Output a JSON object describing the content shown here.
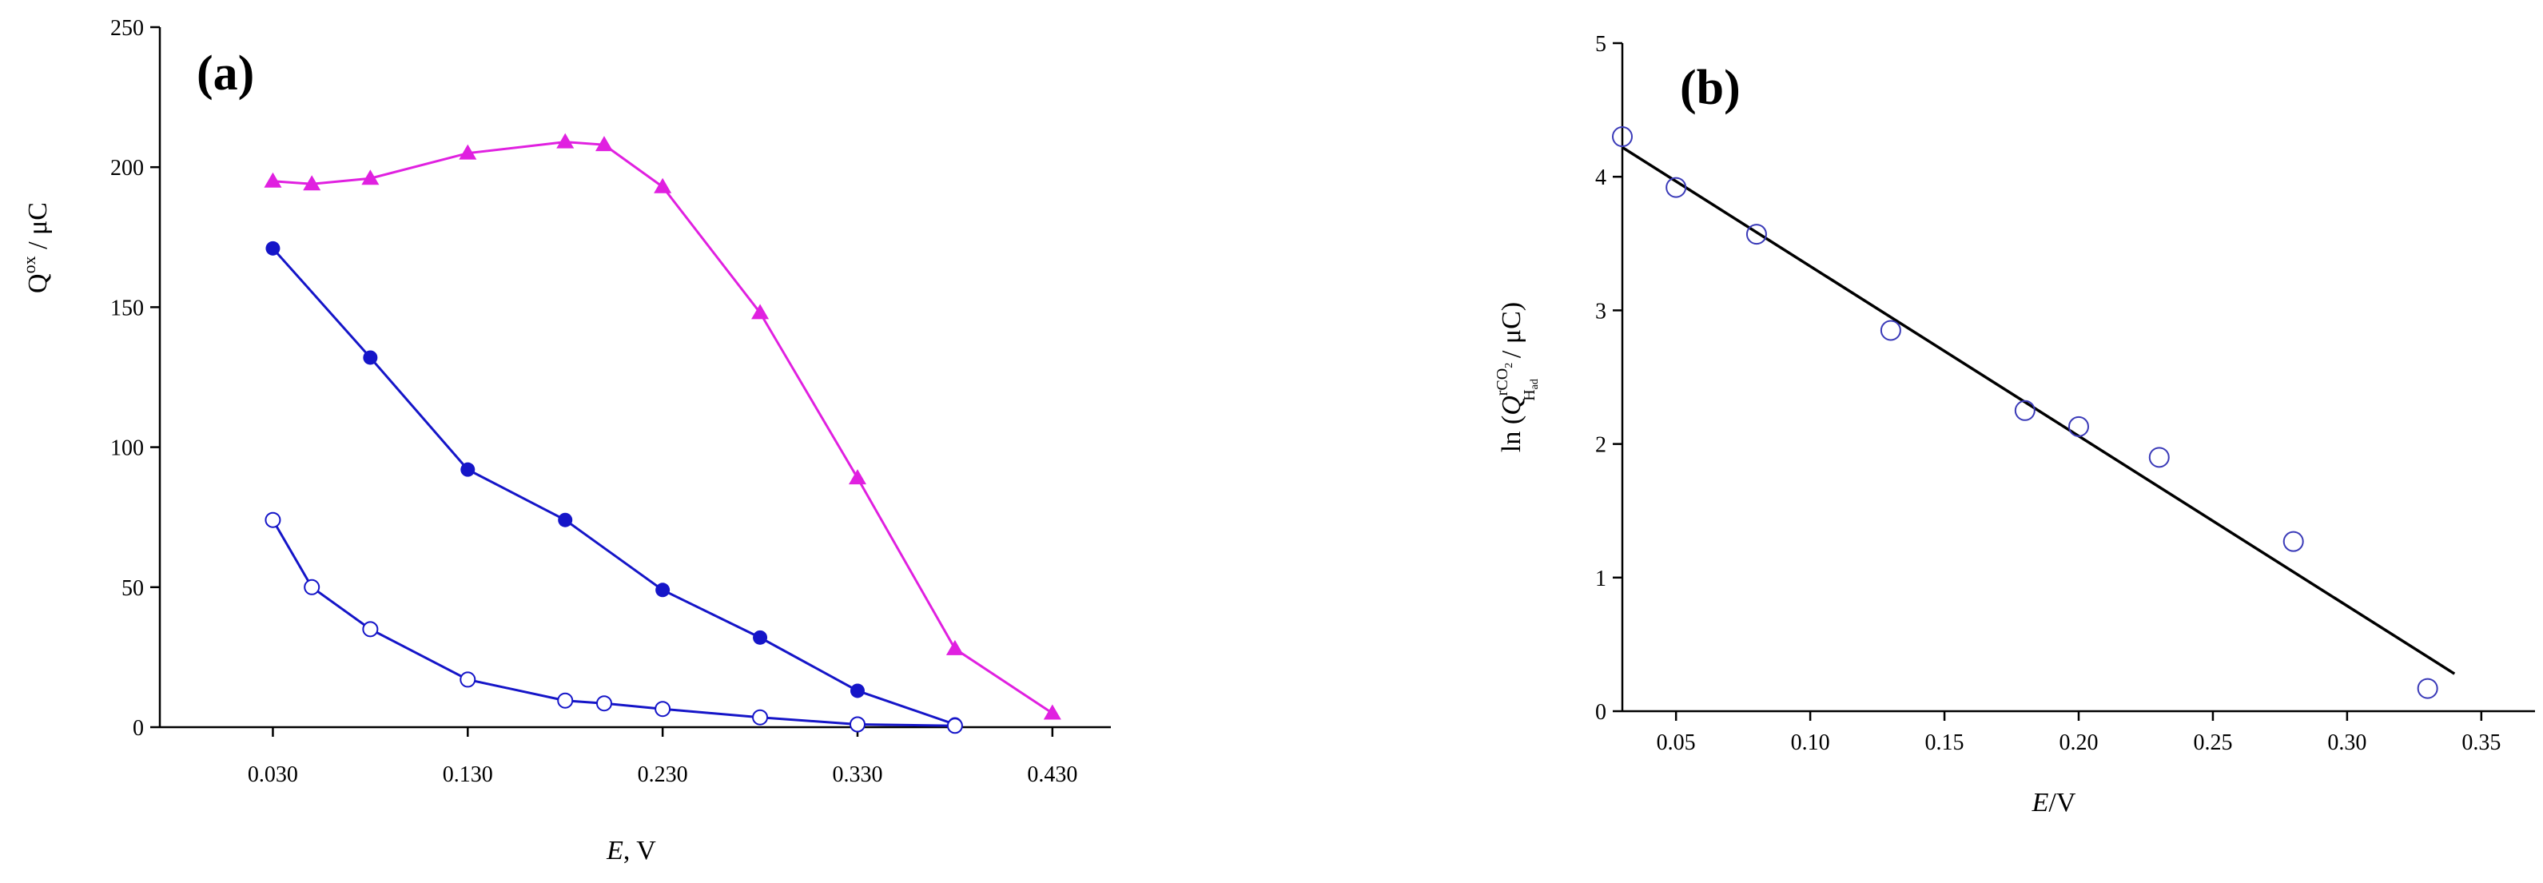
{
  "chart_data": [
    {
      "type": "line",
      "panel_label": "(a)",
      "ylabel_main": "Q",
      "ylabel_sup": "ox",
      "ylabel_unit": " / μC",
      "xlabel_italic": "E",
      "xlabel_rest": ", V",
      "xlim": [
        -0.028,
        0.46
      ],
      "ylim": [
        0,
        250
      ],
      "xticks": [
        {
          "value": 0.03,
          "label": "0.030"
        },
        {
          "value": 0.13,
          "label": "0.130"
        },
        {
          "value": 0.23,
          "label": "0.230"
        },
        {
          "value": 0.33,
          "label": "0.330"
        },
        {
          "value": 0.43,
          "label": "0.430"
        }
      ],
      "yticks": [
        {
          "value": 0,
          "label": "0"
        },
        {
          "value": 50,
          "label": "50"
        },
        {
          "value": 100,
          "label": "100"
        },
        {
          "value": 150,
          "label": "150"
        },
        {
          "value": 200,
          "label": "200"
        },
        {
          "value": 250,
          "label": "250"
        }
      ],
      "series": [
        {
          "name": "triangles",
          "marker": "triangle",
          "color": "#e020e0",
          "x": [
            0.03,
            0.05,
            0.08,
            0.13,
            0.18,
            0.2,
            0.23,
            0.28,
            0.33,
            0.38,
            0.43
          ],
          "y": [
            195,
            194,
            196,
            205,
            209,
            208,
            193,
            148,
            89,
            28,
            5
          ]
        },
        {
          "name": "filled circles",
          "marker": "circle-filled",
          "color": "#1515c8",
          "x": [
            0.03,
            0.08,
            0.13,
            0.18,
            0.23,
            0.28,
            0.33,
            0.38
          ],
          "y": [
            171,
            132,
            92,
            74,
            49,
            32,
            13,
            1
          ]
        },
        {
          "name": "open circles",
          "marker": "circle-open",
          "color": "#1515c8",
          "x": [
            0.03,
            0.05,
            0.08,
            0.13,
            0.18,
            0.2,
            0.23,
            0.28,
            0.33,
            0.38
          ],
          "y": [
            74,
            50,
            35,
            17,
            9.5,
            8.5,
            6.5,
            3.5,
            1,
            0.5
          ]
        }
      ]
    },
    {
      "type": "scatter",
      "panel_label": "(b)",
      "ylabel_prefix": "ln (",
      "ylabel_Q": "Q",
      "ylabel_sup": "rCO",
      "ylabel_sup_sub": "2",
      "ylabel_sub": "H",
      "ylabel_sub_sub": "ad",
      "ylabel_suffix": "/ μC)",
      "xlabel_italic": "E",
      "xlabel_rest": "/V",
      "xlim": [
        0.03,
        0.37
      ],
      "ylim": [
        0,
        5
      ],
      "xticks": [
        {
          "value": 0.05,
          "label": "0.05"
        },
        {
          "value": 0.1,
          "label": "0.10"
        },
        {
          "value": 0.15,
          "label": "0.15"
        },
        {
          "value": 0.2,
          "label": "0.20"
        },
        {
          "value": 0.25,
          "label": "0.25"
        },
        {
          "value": 0.3,
          "label": "0.30"
        },
        {
          "value": 0.35,
          "label": "0.35"
        }
      ],
      "yticks": [
        {
          "value": 0,
          "label": "0"
        },
        {
          "value": 1,
          "label": "1"
        },
        {
          "value": 2,
          "label": "2"
        },
        {
          "value": 3,
          "label": "3"
        },
        {
          "value": 4,
          "label": "4"
        },
        {
          "value": 5,
          "label": "5"
        }
      ],
      "points": {
        "color": "#3a3ab8",
        "x": [
          0.03,
          0.05,
          0.08,
          0.13,
          0.18,
          0.2,
          0.23,
          0.28,
          0.33
        ],
        "y": [
          4.3,
          3.92,
          3.57,
          2.85,
          2.25,
          2.13,
          1.9,
          1.27,
          0.17
        ]
      },
      "fit_line": {
        "color": "#000000",
        "x": [
          0.03,
          0.34
        ],
        "y": [
          4.22,
          0.28
        ]
      }
    }
  ]
}
